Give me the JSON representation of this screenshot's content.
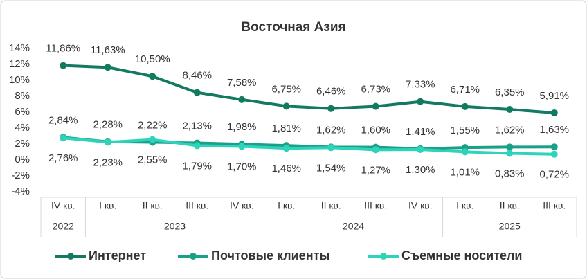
{
  "chart_data": {
    "type": "line",
    "title": "Восточная Азия",
    "categories": [
      "IV кв.",
      "I кв.",
      "II кв.",
      "III кв.",
      "IV кв.",
      "I кв.",
      "II кв.",
      "III кв.",
      "IV кв.",
      "I кв.",
      "II кв.",
      "III кв."
    ],
    "category_groups": [
      {
        "label": "2022",
        "span": 1
      },
      {
        "label": "2023",
        "span": 4
      },
      {
        "label": "2024",
        "span": 4
      },
      {
        "label": "2025",
        "span": 3
      }
    ],
    "series": [
      {
        "name": "Интернет",
        "color": "#137a62",
        "label_color": "#333333",
        "values": [
          11.86,
          11.63,
          10.5,
          8.46,
          7.58,
          6.75,
          6.46,
          6.73,
          7.33,
          6.71,
          6.35,
          5.91
        ],
        "value_labels": [
          "11,86%",
          "11,63%",
          "10,50%",
          "8,46%",
          "7,58%",
          "6,75%",
          "6,46%",
          "6,73%",
          "7,33%",
          "6,71%",
          "6,35%",
          "5,91%"
        ]
      },
      {
        "name": "Почтовые клиенты",
        "color": "#1ba088",
        "label_color": "#0f6b55",
        "values": [
          2.84,
          2.28,
          2.22,
          2.13,
          1.98,
          1.81,
          1.62,
          1.6,
          1.41,
          1.55,
          1.62,
          1.63
        ],
        "value_labels": [
          "2,84%",
          "2,28%",
          "2,22%",
          "2,13%",
          "1,98%",
          "1,81%",
          "1,62%",
          "1,60%",
          "1,41%",
          "1,55%",
          "1,62%",
          "1,63%"
        ]
      },
      {
        "name": "Съемные носители",
        "color": "#2ed3bb",
        "label_color": "#1aa591",
        "values": [
          2.76,
          2.23,
          2.55,
          1.79,
          1.7,
          1.46,
          1.54,
          1.27,
          1.3,
          1.01,
          0.83,
          0.72
        ],
        "value_labels": [
          "2,76%",
          "2,23%",
          "2,55%",
          "1,79%",
          "1,70%",
          "1,46%",
          "1,54%",
          "1,27%",
          "1,30%",
          "1,01%",
          "0,83%",
          "0,72%"
        ]
      }
    ],
    "ylim": [
      -4,
      14
    ],
    "yticks": [
      {
        "value": -4,
        "label": "-4%"
      },
      {
        "value": -2,
        "label": "-2%"
      },
      {
        "value": 0,
        "label": "0%"
      },
      {
        "value": 2,
        "label": "2%"
      },
      {
        "value": 4,
        "label": "4%"
      },
      {
        "value": 6,
        "label": "6%"
      },
      {
        "value": 8,
        "label": "8%"
      },
      {
        "value": 10,
        "label": "10%"
      },
      {
        "value": 12,
        "label": "12%"
      },
      {
        "value": 14,
        "label": "14%"
      }
    ],
    "grid": false,
    "legend": "bottom"
  }
}
